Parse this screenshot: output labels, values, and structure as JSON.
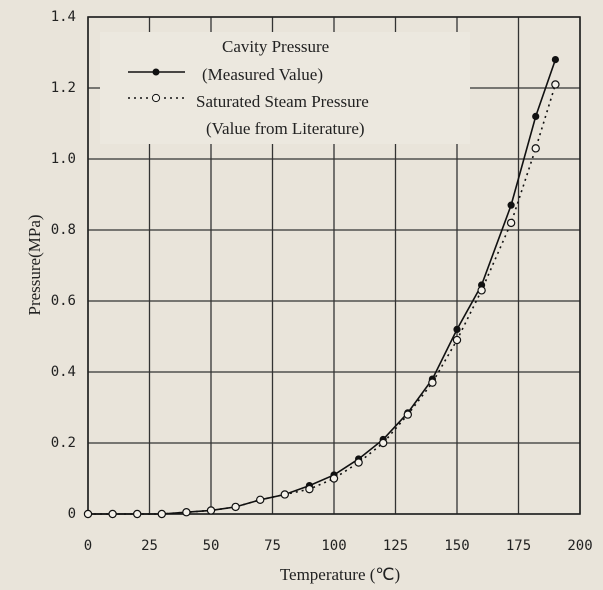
{
  "chart_data": {
    "type": "line",
    "x_label": "Temperature (℃)",
    "y_label": "Pressure(MPa)",
    "x": [
      0,
      10,
      20,
      30,
      40,
      50,
      60,
      70,
      80,
      90,
      100,
      110,
      120,
      130,
      140,
      150,
      160,
      172,
      182,
      190
    ],
    "series": [
      {
        "name": "Cavity Pressure",
        "note": "(Measured Value)",
        "color": "#111111",
        "style": "solid",
        "marker": "filled",
        "values": [
          0,
          0,
          0,
          0,
          0.005,
          0.01,
          0.02,
          0.04,
          0.055,
          0.08,
          0.11,
          0.155,
          0.21,
          0.285,
          0.38,
          0.52,
          0.645,
          0.87,
          1.12,
          1.28
        ]
      },
      {
        "name": "Saturated Steam Pressure",
        "note": "(Value from Literature)",
        "color": "#111111",
        "style": "dotted",
        "marker": "open",
        "values": [
          0,
          0,
          0,
          0,
          0.005,
          0.01,
          0.02,
          0.04,
          0.055,
          0.07,
          0.1,
          0.145,
          0.2,
          0.28,
          0.37,
          0.49,
          0.63,
          0.82,
          1.03,
          1.21
        ]
      }
    ],
    "xlim": [
      0,
      200
    ],
    "xticks": [
      0,
      25,
      50,
      75,
      100,
      125,
      150,
      175,
      200
    ],
    "ylim": [
      0,
      1.4
    ],
    "yticks": [
      0,
      0.2,
      0.4,
      0.6,
      0.8,
      {
        "value": 1,
        "label": "1.0"
      },
      1.2,
      1.4
    ],
    "grid": true
  }
}
